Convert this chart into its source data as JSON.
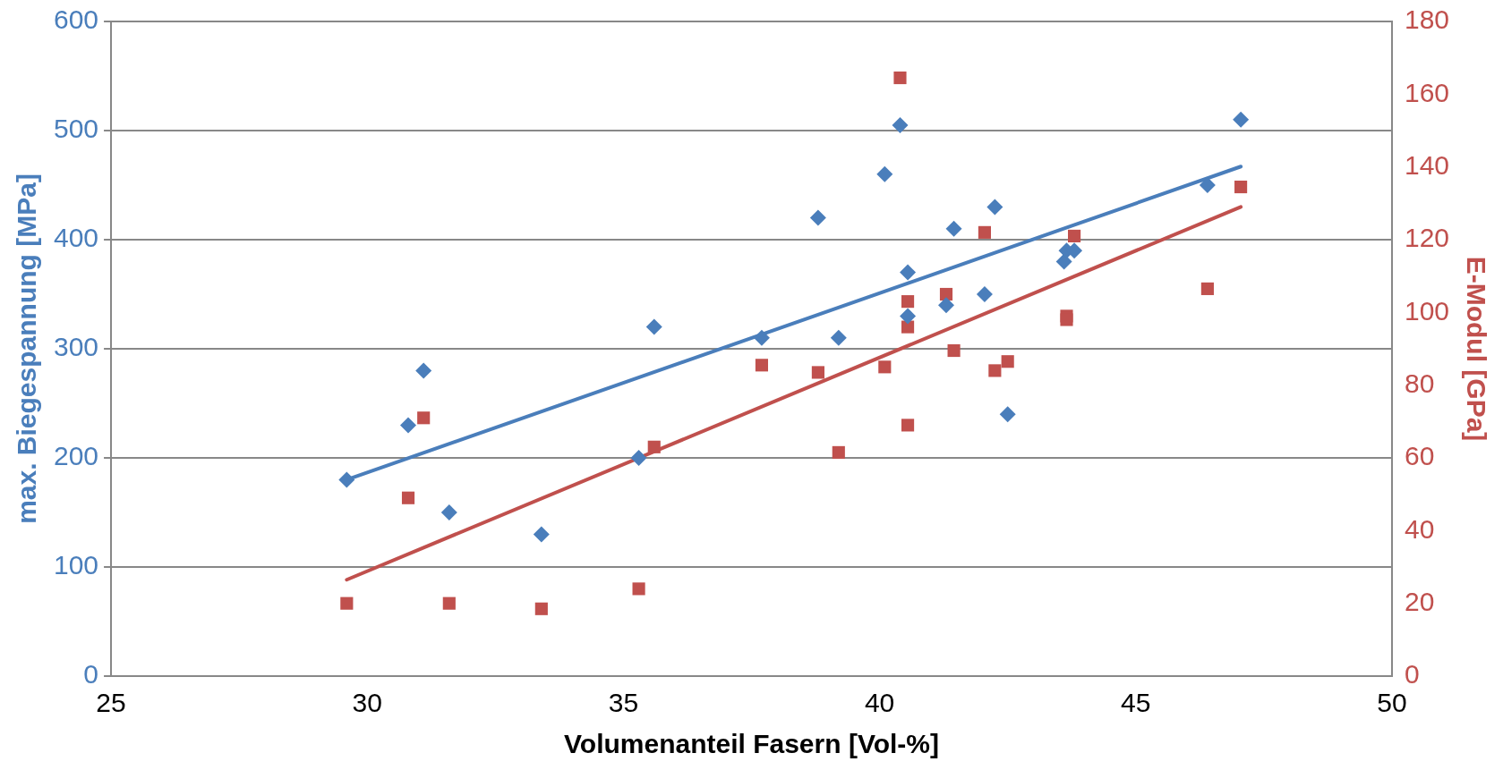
{
  "chart_data": {
    "type": "scatter",
    "xlabel": "Volumenanteil Fasern [Vol-%]",
    "ylabel": "max. Biegespannung [MPa]",
    "y2label": "E-Modul [GPa]",
    "xlim": [
      25,
      50
    ],
    "xticks": [
      25,
      30,
      35,
      40,
      45,
      50
    ],
    "ylim": [
      0,
      600
    ],
    "yticks": [
      0,
      100,
      200,
      300,
      400,
      500,
      600
    ],
    "y2lim": [
      0,
      180
    ],
    "y2ticks": [
      0,
      20,
      40,
      60,
      80,
      100,
      120,
      140,
      160,
      180
    ],
    "grid": "y",
    "legend": false,
    "series": [
      {
        "marker": "diamond",
        "color": "#4a7ebb",
        "x": [
          29.6,
          30.8,
          31.1,
          31.6,
          33.4,
          35.3,
          35.6,
          37.7,
          38.8,
          39.2,
          40.1,
          40.4,
          40.55,
          40.55,
          41.3,
          41.45,
          42.05,
          42.25,
          42.5,
          43.6,
          43.65,
          43.8,
          46.4,
          47.05
        ],
        "values": [
          180,
          230,
          280,
          150,
          130,
          200,
          320,
          310,
          420,
          310,
          460,
          505,
          370,
          330,
          340,
          410,
          350,
          430,
          240,
          380,
          390,
          390,
          450,
          510
        ]
      },
      {
        "marker": "square",
        "color": "#c0504d",
        "axis": "y2",
        "x": [
          29.6,
          30.8,
          31.1,
          31.6,
          33.4,
          35.3,
          35.6,
          37.7,
          38.8,
          39.2,
          40.1,
          40.4,
          40.55,
          40.55,
          40.55,
          41.3,
          41.45,
          42.05,
          42.25,
          42.5,
          43.65,
          43.65,
          43.8,
          46.4,
          47.05
        ],
        "values": [
          20,
          49,
          71,
          20,
          18.5,
          24,
          63,
          85.5,
          83.5,
          61.5,
          85,
          164.5,
          103,
          96,
          69,
          105,
          89.5,
          122,
          84,
          86.5,
          99,
          98,
          121,
          106.5,
          134.5
        ]
      },
      {
        "type": "line",
        "marker": "none",
        "color": "#4a7ebb",
        "x": [
          29.6,
          47.05
        ],
        "values": [
          180,
          467
        ]
      },
      {
        "type": "line",
        "marker": "none",
        "color": "#c0504d",
        "axis": "y2",
        "x": [
          29.6,
          47.05
        ],
        "values": [
          26.5,
          129
        ]
      }
    ]
  }
}
